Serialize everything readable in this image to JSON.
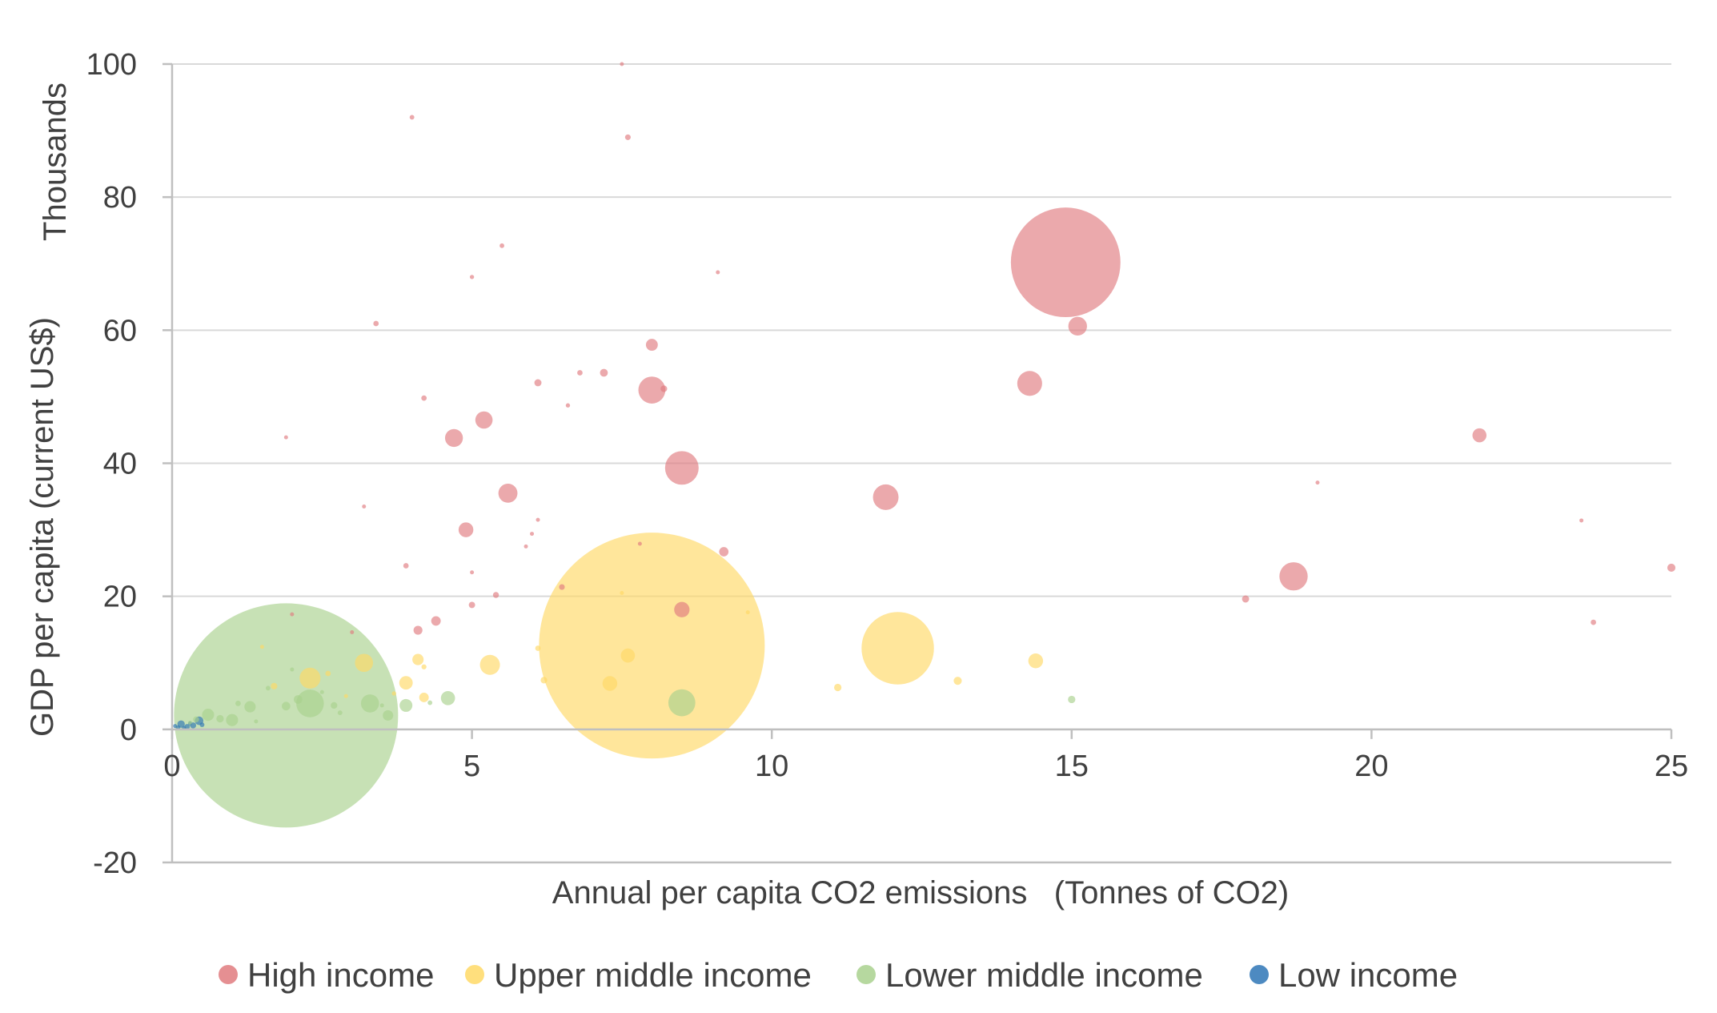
{
  "chart_data": {
    "type": "scatter",
    "subtype": "bubble",
    "xlabel": "Annual per capita CO2 emissions   (Tonnes of CO2)",
    "ylabel": "GDP per capita (current US$)",
    "y_units_label": "Thousands",
    "xlim": [
      0,
      25
    ],
    "ylim": [
      -20,
      100
    ],
    "x_ticks": [
      0,
      5,
      10,
      15,
      20,
      25
    ],
    "y_ticks": [
      -20,
      0,
      20,
      40,
      60,
      80,
      100
    ],
    "grid": true,
    "legend_position": "bottom",
    "series": [
      {
        "name": "High income",
        "color": "#e07b7f",
        "points": [
          [
            14.9,
            70.2,
            330
          ],
          [
            15.1,
            60.6,
            9.6
          ],
          [
            14.3,
            52.0,
            17.0
          ],
          [
            8.5,
            39.3,
            31.0
          ],
          [
            11.9,
            34.9,
            18.0
          ],
          [
            18.7,
            23.0,
            22.0
          ],
          [
            8.0,
            51.0,
            20.0
          ],
          [
            8.2,
            51.2,
            1.2
          ],
          [
            5.2,
            46.5,
            8.2
          ],
          [
            4.7,
            43.8,
            8.8
          ],
          [
            5.6,
            35.5,
            10.0
          ],
          [
            4.9,
            30.0,
            6.0
          ],
          [
            8.0,
            57.8,
            3.9
          ],
          [
            21.8,
            44.2,
            5.4
          ],
          [
            9.2,
            26.7,
            2.4
          ],
          [
            8.5,
            18.0,
            6.5
          ],
          [
            4.0,
            92.0,
            0.6
          ],
          [
            7.6,
            89.0,
            0.9
          ],
          [
            7.5,
            100.0,
            0.4
          ],
          [
            5.5,
            72.7,
            0.6
          ],
          [
            3.4,
            61.0,
            0.8
          ],
          [
            5.0,
            68.0,
            0.5
          ],
          [
            4.2,
            49.8,
            0.8
          ],
          [
            6.1,
            52.1,
            1.4
          ],
          [
            6.8,
            53.6,
            0.8
          ],
          [
            7.2,
            53.6,
            1.7
          ],
          [
            6.6,
            48.7,
            0.5
          ],
          [
            3.9,
            24.6,
            0.8
          ],
          [
            5.0,
            18.7,
            1.1
          ],
          [
            5.4,
            20.2,
            1.0
          ],
          [
            4.1,
            14.9,
            2.2
          ],
          [
            4.4,
            16.3,
            2.5
          ],
          [
            17.9,
            19.6,
            1.4
          ],
          [
            23.7,
            16.1,
            0.8
          ],
          [
            25.0,
            24.3,
            1.8
          ],
          [
            6.5,
            21.4,
            0.9
          ],
          [
            23.5,
            31.4,
            0.25
          ],
          [
            19.1,
            37.1,
            0.15
          ],
          [
            2.0,
            17.3,
            0.15
          ],
          [
            6.1,
            31.5,
            0.2
          ],
          [
            5.0,
            23.6,
            0.3
          ],
          [
            6.0,
            29.4,
            0.2
          ],
          [
            3.0,
            14.6,
            0.3
          ],
          [
            7.8,
            27.9,
            0.2
          ],
          [
            9.1,
            68.7,
            0.08
          ],
          [
            3.2,
            33.5,
            0.1
          ],
          [
            1.9,
            43.9,
            0.05
          ],
          [
            5.9,
            27.5,
            0.1
          ]
        ]
      },
      {
        "name": "Upper middle income",
        "color": "#ffd966",
        "points": [
          [
            8.0,
            12.6,
            1400
          ],
          [
            12.1,
            12.2,
            144
          ],
          [
            7.3,
            6.9,
            6.0
          ],
          [
            5.3,
            9.7,
            11.0
          ],
          [
            3.2,
            10.0,
            9.0
          ],
          [
            2.3,
            7.7,
            12.0
          ],
          [
            3.9,
            7.0,
            5.0
          ],
          [
            4.1,
            10.5,
            3.5
          ],
          [
            7.6,
            11.1,
            5.5
          ],
          [
            14.4,
            10.3,
            6.0
          ],
          [
            13.1,
            7.3,
            1.8
          ],
          [
            11.1,
            6.3,
            1.5
          ],
          [
            6.2,
            7.4,
            1.2
          ],
          [
            6.1,
            12.2,
            0.8
          ],
          [
            4.2,
            4.8,
            2.5
          ],
          [
            1.7,
            6.5,
            1.2
          ],
          [
            2.6,
            8.4,
            0.8
          ],
          [
            4.2,
            9.4,
            0.7
          ],
          [
            3.7,
            5.4,
            0.5
          ],
          [
            1.5,
            12.4,
            0.2
          ],
          [
            2.9,
            5.0,
            0.3
          ],
          [
            9.6,
            17.6,
            0.2
          ],
          [
            7.5,
            20.5,
            0.2
          ]
        ]
      },
      {
        "name": "Lower middle income",
        "color": "#a9d18e",
        "points": [
          [
            1.9,
            2.1,
            1380
          ],
          [
            2.3,
            3.9,
            21.0
          ],
          [
            8.5,
            4.0,
            20.0
          ],
          [
            3.3,
            3.9,
            9.0
          ],
          [
            4.6,
            4.7,
            5.5
          ],
          [
            3.9,
            3.6,
            4.5
          ],
          [
            3.6,
            2.1,
            3.0
          ],
          [
            1.3,
            3.4,
            3.5
          ],
          [
            1.0,
            1.4,
            4.0
          ],
          [
            0.6,
            2.2,
            4.0
          ],
          [
            2.1,
            4.5,
            2.0
          ],
          [
            1.9,
            3.5,
            2.0
          ],
          [
            15.0,
            4.5,
            1.5
          ],
          [
            2.7,
            3.6,
            1.2
          ],
          [
            0.8,
            1.6,
            1.5
          ],
          [
            0.4,
            1.5,
            1.0
          ],
          [
            1.1,
            3.9,
            0.8
          ],
          [
            1.6,
            6.2,
            0.6
          ],
          [
            2.8,
            2.5,
            0.6
          ],
          [
            4.3,
            4.0,
            0.6
          ],
          [
            1.4,
            1.2,
            0.4
          ],
          [
            2.5,
            5.6,
            0.4
          ],
          [
            0.3,
            1.0,
            0.3
          ],
          [
            3.5,
            3.6,
            0.3
          ],
          [
            2.0,
            9.0,
            0.3
          ]
        ]
      },
      {
        "name": "Low income",
        "color": "#2e75b6",
        "points": [
          [
            0.45,
            1.3,
            2.0
          ],
          [
            0.35,
            0.6,
            1.0
          ],
          [
            0.15,
            0.8,
            1.5
          ],
          [
            0.25,
            0.4,
            0.8
          ],
          [
            0.1,
            0.3,
            0.5
          ],
          [
            0.05,
            0.5,
            0.4
          ],
          [
            0.5,
            0.7,
            0.6
          ],
          [
            0.3,
            0.9,
            0.4
          ],
          [
            0.2,
            0.2,
            0.3
          ]
        ]
      }
    ]
  }
}
